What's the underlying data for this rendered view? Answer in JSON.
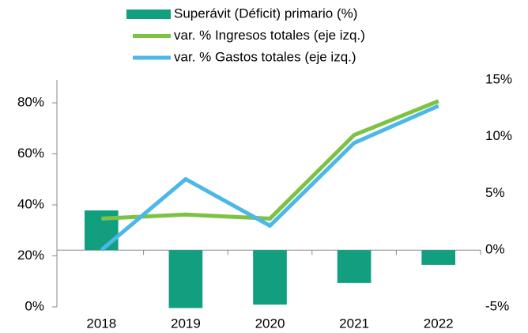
{
  "chart_data": {
    "type": "bar_line",
    "categories": [
      "2018",
      "2019",
      "2020",
      "2021",
      "2022"
    ],
    "series": [
      {
        "name": "Superávit (Déficit) primario (%)",
        "type": "bar",
        "axis": "y2",
        "color": "#129f7f",
        "values": [
          3.5,
          -5.1,
          -4.8,
          -2.9,
          -1.3
        ]
      },
      {
        "name": "var. % Ingresos totales (eje izq.)",
        "type": "line",
        "axis": "y",
        "color": "#7dc242",
        "values": [
          34.6,
          36.2,
          34.6,
          67.4,
          80.7
        ]
      },
      {
        "name": "var. % Gastos totales (eje izq.)",
        "type": "line",
        "axis": "y",
        "color": "#4db8e8",
        "values": [
          22.3,
          50.1,
          31.8,
          64.3,
          78.8
        ]
      }
    ],
    "ylim": [
      0,
      89
    ],
    "yticks": [
      {
        "value": 0,
        "label": "0%"
      },
      {
        "value": 20,
        "label": "20%"
      },
      {
        "value": 40,
        "label": "40%"
      },
      {
        "value": 60,
        "label": "60%"
      },
      {
        "value": 80,
        "label": "80%"
      }
    ],
    "y2lim": [
      -5,
      15
    ],
    "y2ticks": [
      {
        "value": -5,
        "label": "-5%"
      },
      {
        "value": 0,
        "label": "0%"
      },
      {
        "value": 5,
        "label": "5%"
      },
      {
        "value": 10,
        "label": "10%"
      },
      {
        "value": 15,
        "label": "15%"
      }
    ],
    "legend": "top"
  }
}
